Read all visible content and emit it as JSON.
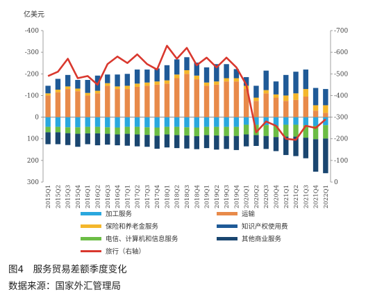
{
  "figure": {
    "caption": "图4　服务贸易差额季度变化",
    "source": "数据来源：国家外汇管理局"
  },
  "chart_data": {
    "type": "bar",
    "stacked": true,
    "y_left_unit": "亿美元",
    "y_left_ticks": [
      "-400",
      "-300",
      "-200",
      "-100",
      "0",
      "100",
      "200",
      "300"
    ],
    "y_right_ticks": [
      "-700",
      "-600",
      "-500",
      "-400",
      "-300",
      "-200",
      "-100",
      "0"
    ],
    "ylim_left": [
      300,
      -400
    ],
    "ylim_right": [
      0,
      -700
    ],
    "grid": false,
    "legend_position": "bottom",
    "categories": [
      "2015Q1",
      "2015Q2",
      "2015Q3",
      "2015Q4",
      "2016Q1",
      "2016Q2",
      "2016Q3",
      "2016Q4",
      "2017Q1",
      "2017Q2",
      "2017Q3",
      "2017Q4",
      "2018Q1",
      "2018Q2",
      "2018Q3",
      "2018Q4",
      "2019Q1",
      "2019Q2",
      "2019Q3",
      "2019Q4",
      "2020Q1",
      "2020Q2",
      "2020Q3",
      "2020Q4",
      "2021Q1",
      "2021Q2",
      "2021Q3",
      "2021Q4",
      "2022Q1"
    ],
    "series": [
      {
        "name": "加工服务",
        "color": "#2aa7de",
        "axis": "left",
        "values": [
          45,
          45,
          47,
          47,
          45,
          45,
          47,
          48,
          45,
          45,
          47,
          48,
          45,
          45,
          47,
          48,
          45,
          45,
          45,
          45,
          35,
          35,
          37,
          40,
          35,
          35,
          37,
          40,
          37
        ]
      },
      {
        "name": "运输",
        "color": "#e88a4a",
        "axis": "left",
        "values": [
          -100,
          -115,
          -130,
          -120,
          -100,
          -110,
          -145,
          -130,
          -130,
          -140,
          -145,
          -150,
          -155,
          -180,
          -200,
          -175,
          -145,
          -150,
          -165,
          -165,
          -130,
          -75,
          -110,
          -90,
          -75,
          -80,
          -95,
          -30,
          -20
        ]
      },
      {
        "name": "保险和养老金服务",
        "color": "#f4b72c",
        "axis": "left",
        "values": [
          -10,
          -12,
          -12,
          -12,
          -12,
          -12,
          -12,
          -12,
          -15,
          -15,
          -15,
          -15,
          -15,
          -17,
          -17,
          -17,
          -15,
          -15,
          -15,
          -15,
          -15,
          -15,
          -15,
          -15,
          -25,
          -30,
          -35,
          -25,
          -35
        ]
      },
      {
        "name": "知识产权使用费",
        "color": "#1f5a97",
        "axis": "left",
        "values": [
          -35,
          -50,
          -53,
          -40,
          -60,
          -70,
          -40,
          -55,
          -55,
          -65,
          -60,
          -60,
          -70,
          -70,
          -60,
          -60,
          -70,
          -80,
          -65,
          -42,
          -40,
          -55,
          -90,
          -60,
          -95,
          -100,
          -90,
          -80,
          -75
        ]
      },
      {
        "name": "电信、计算机和信息服务",
        "color": "#6cbd45",
        "axis": "left",
        "values": [
          25,
          25,
          27,
          30,
          30,
          30,
          30,
          32,
          32,
          35,
          35,
          38,
          35,
          38,
          38,
          40,
          38,
          40,
          42,
          42,
          45,
          48,
          50,
          52,
          55,
          55,
          58,
          62,
          62
        ]
      },
      {
        "name": "其他商业服务",
        "color": "#1a4670",
        "axis": "left",
        "values": [
          55,
          55,
          55,
          60,
          50,
          55,
          50,
          50,
          55,
          55,
          55,
          60,
          60,
          60,
          60,
          60,
          60,
          65,
          60,
          65,
          55,
          50,
          60,
          65,
          85,
          90,
          95,
          150,
          160
        ]
      },
      {
        "name": "旅行（右轴）",
        "color": "#d9382e",
        "axis": "right",
        "type": "line",
        "values": [
          -490,
          -510,
          -570,
          -480,
          -490,
          -450,
          -545,
          -580,
          -550,
          -590,
          -545,
          -520,
          -630,
          -570,
          -620,
          -540,
          -575,
          -530,
          -575,
          -530,
          -450,
          -230,
          -280,
          -260,
          -200,
          -195,
          -260,
          -250,
          -290
        ]
      }
    ]
  }
}
